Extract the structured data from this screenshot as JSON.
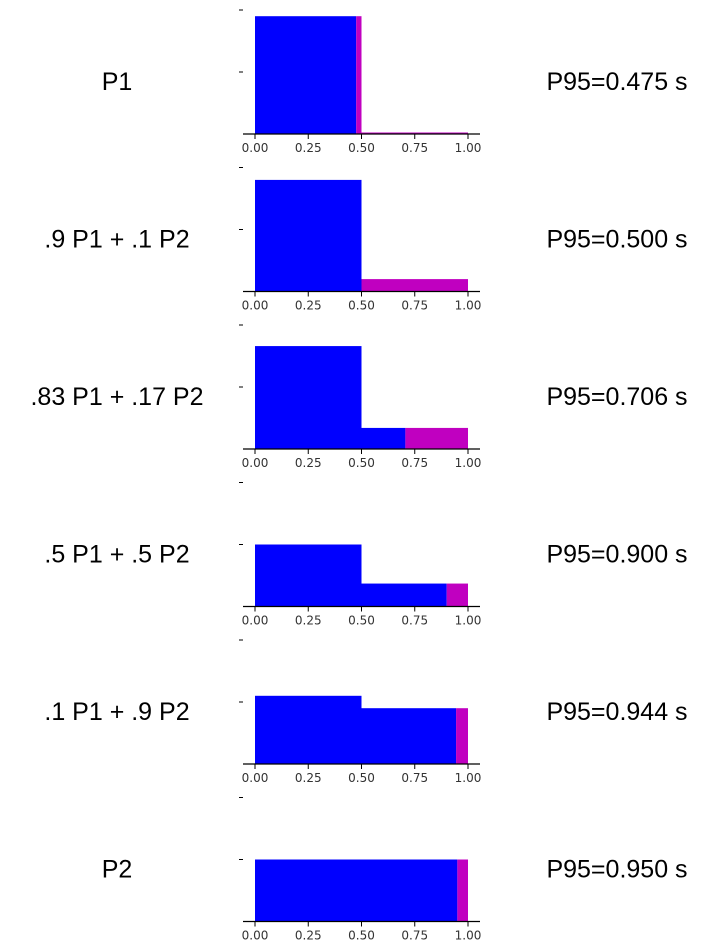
{
  "chart_data": [
    {
      "type": "area",
      "row_label": "P1",
      "p95_label": "P95=0.475 s",
      "x_ticks": [
        "0.00",
        "0.25",
        "0.50",
        "0.75",
        "1.00"
      ],
      "xlim": [
        0,
        1
      ],
      "segments": [
        {
          "x0": 0.0,
          "x1": 0.475,
          "height": 1.9,
          "color": "#0000ff"
        },
        {
          "x0": 0.475,
          "x1": 0.5,
          "height": 1.9,
          "color": "#c000c0"
        },
        {
          "x0": 0.5,
          "x1": 1.0,
          "height": 0.01,
          "color": "#c000c0"
        }
      ]
    },
    {
      "type": "area",
      "row_label": ".9 P1 + .1 P2",
      "p95_label": "P95=0.500 s",
      "x_ticks": [
        "0.00",
        "0.25",
        "0.50",
        "0.75",
        "1.00"
      ],
      "xlim": [
        0,
        1
      ],
      "segments": [
        {
          "x0": 0.0,
          "x1": 0.5,
          "height": 1.8,
          "color": "#0000ff"
        },
        {
          "x0": 0.5,
          "x1": 1.0,
          "height": 0.2,
          "color": "#c000c0"
        }
      ]
    },
    {
      "type": "area",
      "row_label": ".83 P1 + .17 P2",
      "p95_label": "P95=0.706 s",
      "x_ticks": [
        "0.00",
        "0.25",
        "0.50",
        "0.75",
        "1.00"
      ],
      "xlim": [
        0,
        1
      ],
      "segments": [
        {
          "x0": 0.0,
          "x1": 0.5,
          "height": 1.66,
          "color": "#0000ff"
        },
        {
          "x0": 0.5,
          "x1": 0.706,
          "height": 0.34,
          "color": "#0000ff"
        },
        {
          "x0": 0.706,
          "x1": 1.0,
          "height": 0.34,
          "color": "#c000c0"
        }
      ]
    },
    {
      "type": "area",
      "row_label": ".5 P1 + .5 P2",
      "p95_label": "P95=0.900 s",
      "x_ticks": [
        "0.00",
        "0.25",
        "0.50",
        "0.75",
        "1.00"
      ],
      "xlim": [
        0,
        1
      ],
      "segments": [
        {
          "x0": 0.0,
          "x1": 0.5,
          "height": 1.0,
          "color": "#0000ff"
        },
        {
          "x0": 0.5,
          "x1": 0.9,
          "height": 0.37,
          "color": "#0000ff"
        },
        {
          "x0": 0.9,
          "x1": 1.0,
          "height": 0.37,
          "color": "#c000c0"
        }
      ]
    },
    {
      "type": "area",
      "row_label": ".1 P1 + .9 P2",
      "p95_label": "P95=0.944 s",
      "x_ticks": [
        "0.00",
        "0.25",
        "0.50",
        "0.75",
        "1.00"
      ],
      "xlim": [
        0,
        1
      ],
      "segments": [
        {
          "x0": 0.0,
          "x1": 0.5,
          "height": 1.1,
          "color": "#0000ff"
        },
        {
          "x0": 0.5,
          "x1": 0.944,
          "height": 0.9,
          "color": "#0000ff"
        },
        {
          "x0": 0.944,
          "x1": 1.0,
          "height": 0.9,
          "color": "#c000c0"
        }
      ]
    },
    {
      "type": "area",
      "row_label": "P2",
      "p95_label": "P95=0.950 s",
      "x_ticks": [
        "0.00",
        "0.25",
        "0.50",
        "0.75",
        "1.00"
      ],
      "xlim": [
        0,
        1
      ],
      "segments": [
        {
          "x0": 0.0,
          "x1": 0.95,
          "height": 1.0,
          "color": "#0000ff"
        },
        {
          "x0": 0.95,
          "x1": 1.0,
          "height": 1.0,
          "color": "#c000c0"
        }
      ]
    }
  ]
}
